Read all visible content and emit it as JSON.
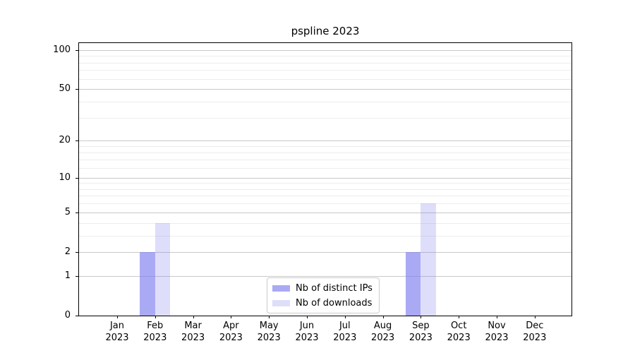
{
  "title": "pspline 2023",
  "legend": {
    "items": [
      {
        "label": "Nb of distinct IPs"
      },
      {
        "label": "Nb of downloads"
      }
    ]
  },
  "chart_data": {
    "type": "bar",
    "title": "pspline 2023",
    "xlabel": "",
    "ylabel": "",
    "scale": "log1p",
    "categories": [
      "Jan 2023",
      "Feb 2023",
      "Mar 2023",
      "Apr 2023",
      "May 2023",
      "Jun 2023",
      "Jul 2023",
      "Aug 2023",
      "Sep 2023",
      "Oct 2023",
      "Nov 2023",
      "Dec 2023"
    ],
    "series": [
      {
        "name": "Nb of distinct IPs",
        "color": "rgba(124,124,238,0.65)",
        "values": [
          0,
          2,
          0,
          0,
          0,
          0,
          0,
          0,
          2,
          0,
          0,
          0
        ]
      },
      {
        "name": "Nb of downloads",
        "color": "rgba(124,124,238,0.25)",
        "values": [
          0,
          4,
          0,
          0,
          0,
          0,
          0,
          0,
          6,
          0,
          0,
          0
        ]
      }
    ],
    "yticks": [
      0,
      1,
      2,
      5,
      10,
      20,
      50,
      100
    ],
    "yticks_minor": [
      3,
      4,
      6,
      7,
      8,
      9,
      12,
      14,
      16,
      18,
      30,
      40,
      60,
      70,
      80,
      90
    ],
    "ylim": [
      0,
      113
    ],
    "grid": "on",
    "legend_position": "lower center",
    "colors": {
      "bar_dark": "rgba(124,124,238,0.65)",
      "bar_light": "rgba(124,124,238,0.25)",
      "grid_major": "#c9c9c9",
      "grid_minor": "#ededed",
      "axis": "#000000"
    }
  }
}
